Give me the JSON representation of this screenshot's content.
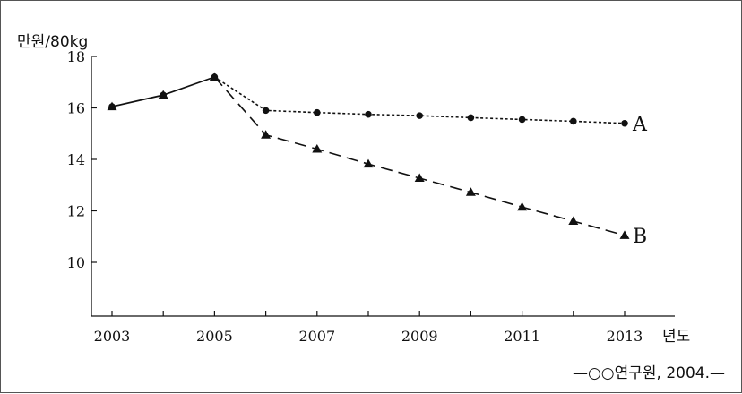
{
  "chart_data": {
    "type": "line",
    "ylabel": "만원/80kg",
    "xlabel": "년도",
    "source": "—○○연구원, 2004.—",
    "xlim": [
      2003,
      2013
    ],
    "ylim": [
      8.5,
      18
    ],
    "xticks": [
      "2003",
      "2005",
      "2007",
      "2009",
      "2011",
      "2013"
    ],
    "yticks": [
      "10",
      "12",
      "14",
      "16",
      "18"
    ],
    "historical": {
      "x": [
        2003,
        2004,
        2005
      ],
      "y": [
        16.05,
        16.5,
        17.2
      ]
    },
    "series": [
      {
        "name": "A",
        "line_style": "dotted",
        "marker": "circle",
        "x": [
          2005,
          2006,
          2007,
          2008,
          2009,
          2010,
          2011,
          2012,
          2013
        ],
        "y": [
          17.2,
          15.9,
          15.82,
          15.75,
          15.7,
          15.62,
          15.55,
          15.48,
          15.4
        ]
      },
      {
        "name": "B",
        "line_style": "dashed",
        "marker": "triangle",
        "x": [
          2005,
          2006,
          2007,
          2008,
          2009,
          2010,
          2011,
          2012,
          2013
        ],
        "y": [
          17.2,
          14.95,
          14.4,
          13.82,
          13.27,
          12.72,
          12.15,
          11.6,
          11.05
        ]
      }
    ]
  }
}
